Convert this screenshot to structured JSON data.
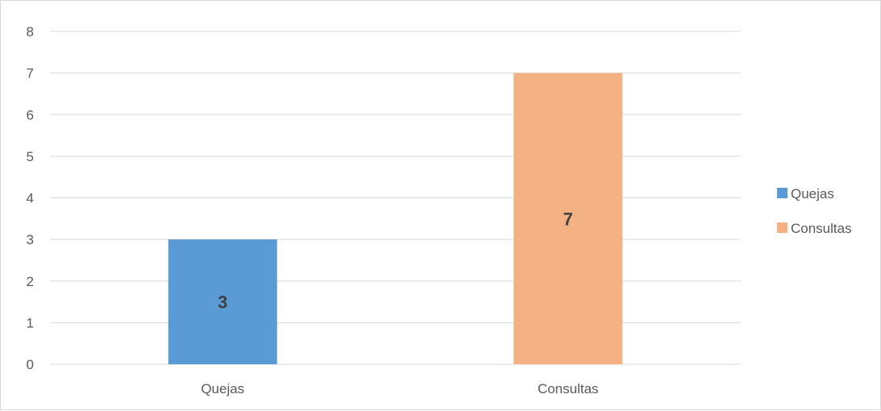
{
  "chart_data": {
    "type": "bar",
    "categories": [
      "Quejas",
      "Consultas"
    ],
    "values": [
      3,
      7
    ],
    "colors": [
      "#5b9bd5",
      "#f4b183"
    ],
    "data_labels": [
      "3",
      "7"
    ],
    "ylim": [
      0,
      8
    ],
    "yticks": [
      "0",
      "1",
      "2",
      "3",
      "4",
      "5",
      "6",
      "7",
      "8"
    ],
    "title": "",
    "xlabel": "",
    "ylabel": "",
    "grid": true,
    "legend": {
      "position": "right",
      "entries": [
        {
          "label": "Quejas",
          "color": "#5b9bd5"
        },
        {
          "label": "Consultas",
          "color": "#f4b183"
        }
      ]
    }
  }
}
